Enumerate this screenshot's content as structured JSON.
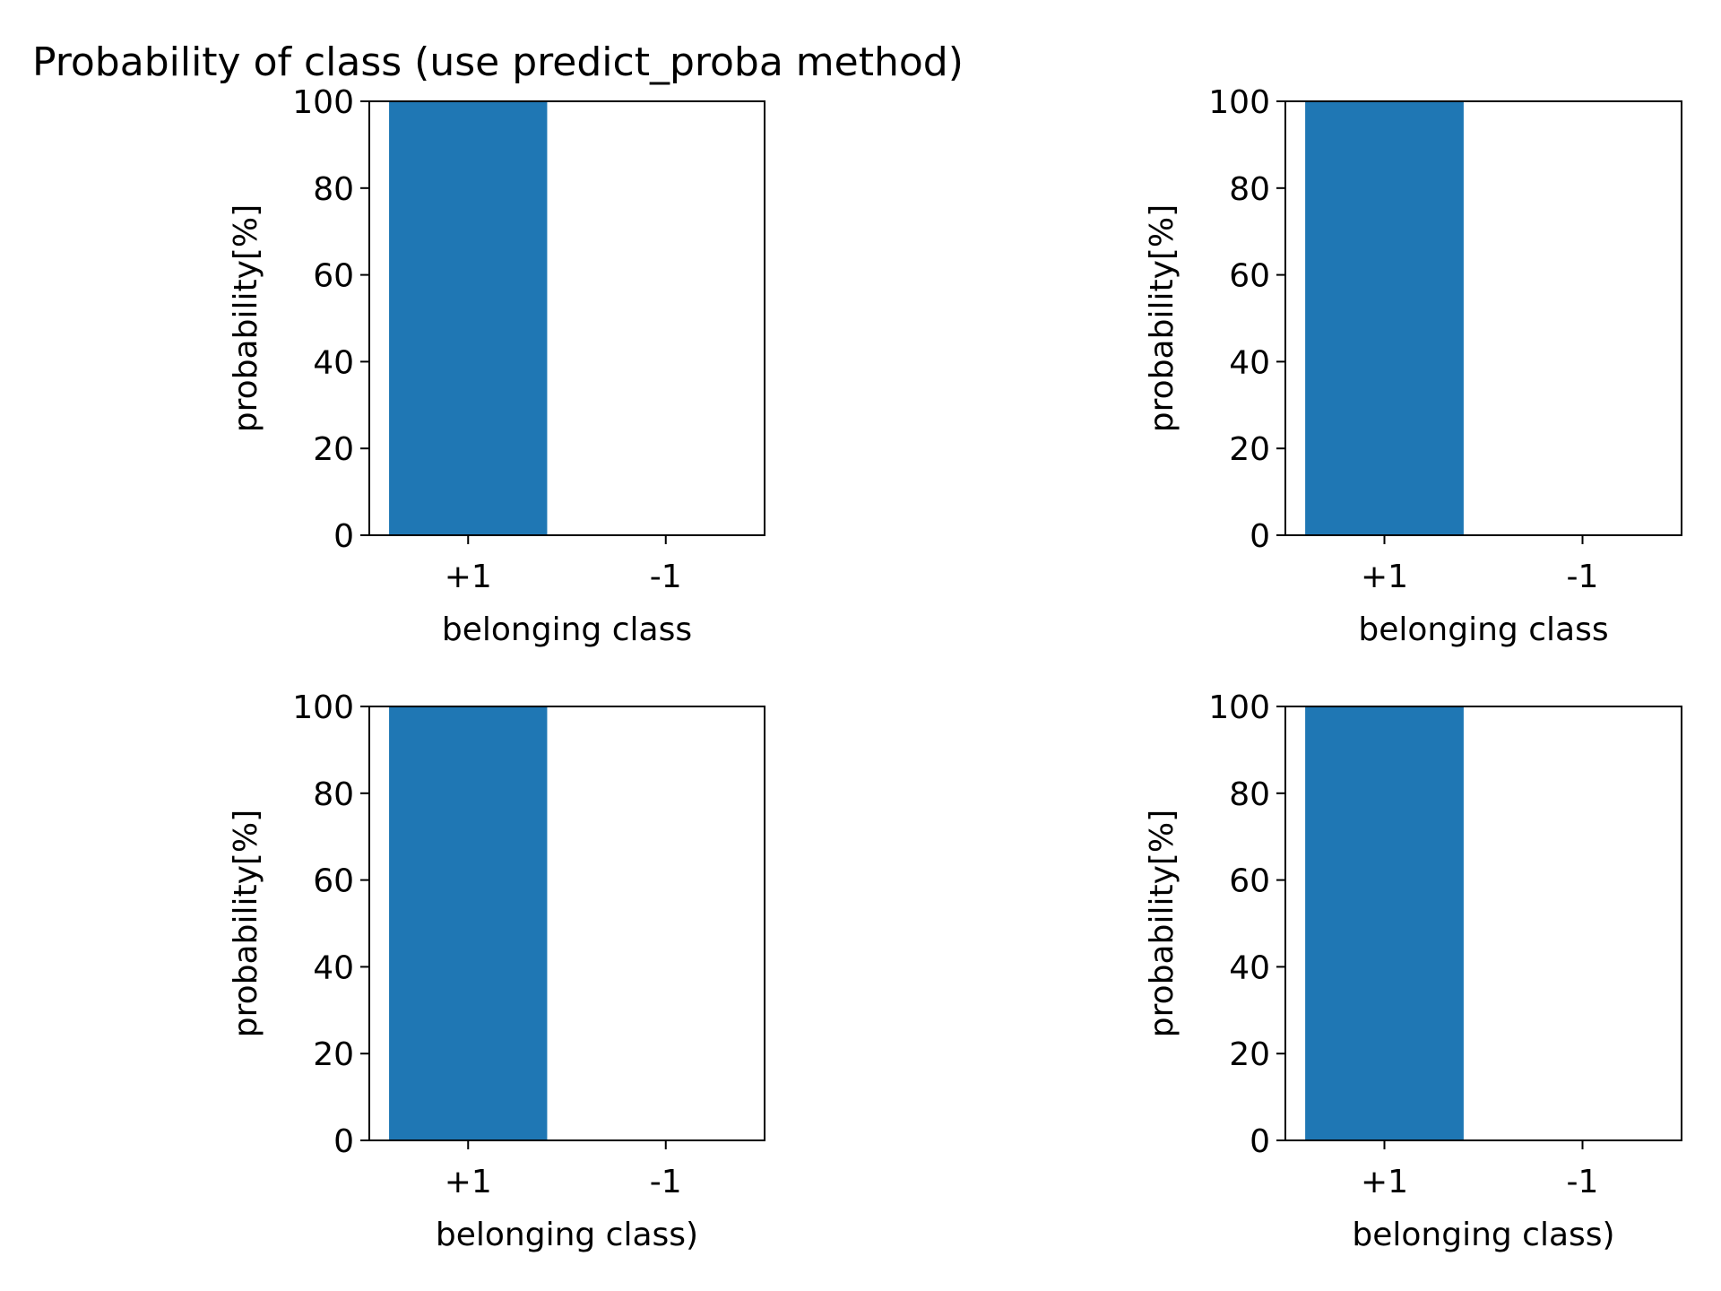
{
  "figure": {
    "title": "Probability of class (use predict_proba method)"
  },
  "colors": {
    "bar": "#1f77b4",
    "axes": "#000000",
    "background": "#ffffff"
  },
  "chart_data": [
    {
      "type": "bar",
      "categories": [
        "+1",
        "-1"
      ],
      "values": [
        100,
        0
      ],
      "xlabel": "belonging class",
      "ylabel": "probability[%]",
      "ylim": [
        0,
        100
      ],
      "yticks": [
        "0",
        "20",
        "40",
        "60",
        "80",
        "100"
      ],
      "grid": false
    },
    {
      "type": "bar",
      "categories": [
        "+1",
        "-1"
      ],
      "values": [
        100,
        0
      ],
      "xlabel": "belonging class",
      "ylabel": "probability[%]",
      "ylim": [
        0,
        100
      ],
      "yticks": [
        "0",
        "20",
        "40",
        "60",
        "80",
        "100"
      ],
      "grid": false
    },
    {
      "type": "bar",
      "categories": [
        "+1",
        "-1"
      ],
      "values": [
        100,
        0
      ],
      "xlabel": "belonging class)",
      "ylabel": "probability[%]",
      "ylim": [
        0,
        100
      ],
      "yticks": [
        "0",
        "20",
        "40",
        "60",
        "80",
        "100"
      ],
      "grid": false
    },
    {
      "type": "bar",
      "categories": [
        "+1",
        "-1"
      ],
      "values": [
        100,
        0
      ],
      "xlabel": "belonging class)",
      "ylabel": "probability[%]",
      "ylim": [
        0,
        100
      ],
      "yticks": [
        "0",
        "20",
        "40",
        "60",
        "80",
        "100"
      ],
      "grid": false
    }
  ]
}
